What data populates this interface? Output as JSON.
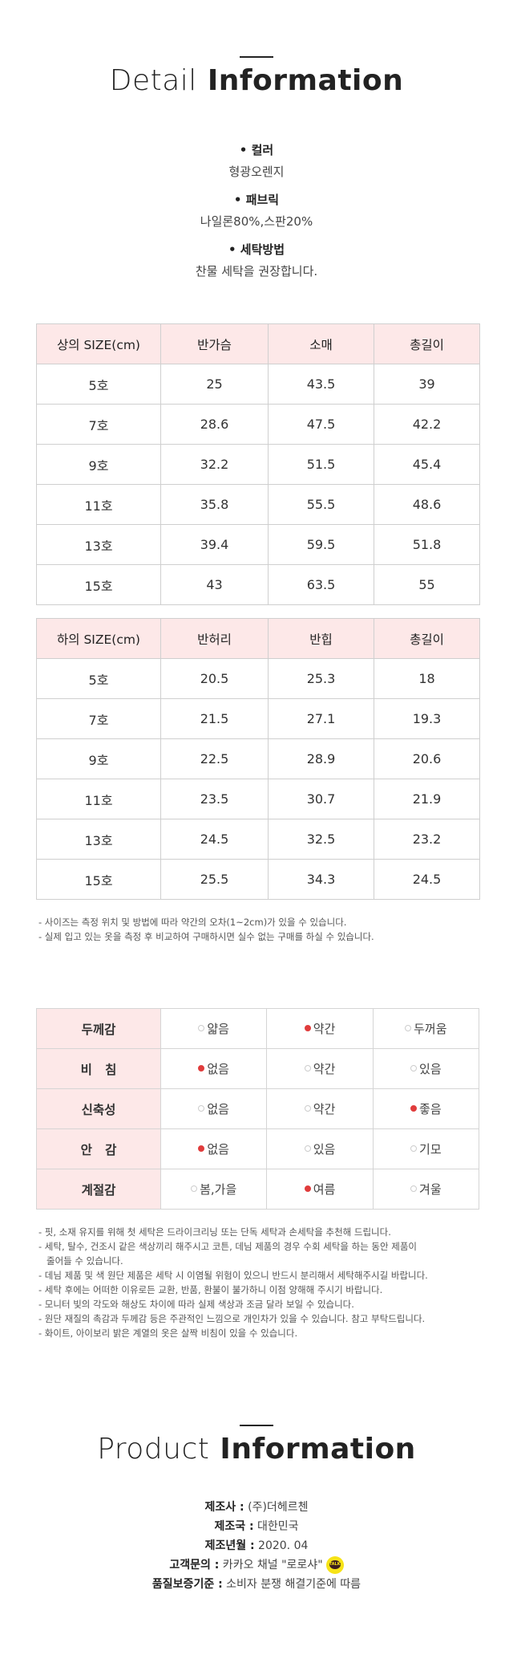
{
  "detail": {
    "title_light": "Detail",
    "title_bold": "Information",
    "attributes": [
      {
        "label": "• 컬러",
        "value": "형광오렌지"
      },
      {
        "label": "• 패브릭",
        "value": "나일론80%,스판20%"
      },
      {
        "label": "• 세탁방법",
        "value": "찬물 세탁을 권장합니다."
      }
    ]
  },
  "top_size": {
    "headers": [
      "상의 SIZE(cm)",
      "반가슴",
      "소매",
      "총길이"
    ],
    "rows": [
      [
        "5호",
        "25",
        "43.5",
        "39"
      ],
      [
        "7호",
        "28.6",
        "47.5",
        "42.2"
      ],
      [
        "9호",
        "32.2",
        "51.5",
        "45.4"
      ],
      [
        "11호",
        "35.8",
        "55.5",
        "48.6"
      ],
      [
        "13호",
        "39.4",
        "59.5",
        "51.8"
      ],
      [
        "15호",
        "43",
        "63.5",
        "55"
      ]
    ]
  },
  "bottom_size": {
    "headers": [
      "하의 SIZE(cm)",
      "반허리",
      "반힙",
      "총길이"
    ],
    "rows": [
      [
        "5호",
        "20.5",
        "25.3",
        "18"
      ],
      [
        "7호",
        "21.5",
        "27.1",
        "19.3"
      ],
      [
        "9호",
        "22.5",
        "28.9",
        "20.6"
      ],
      [
        "11호",
        "23.5",
        "30.7",
        "21.9"
      ],
      [
        "13호",
        "24.5",
        "32.5",
        "23.2"
      ],
      [
        "15호",
        "25.5",
        "34.3",
        "24.5"
      ]
    ]
  },
  "size_notes": [
    "- 사이즈는 측정 위치 및 방법에 따라 약간의 오차(1~2cm)가 있을 수 있습니다.",
    "- 실제 입고 있는 옷을 측정 후 비교하여 구매하시면 실수 없는 구매를 하실 수 있습니다."
  ],
  "feel": [
    {
      "label": "두께감",
      "options": [
        "얇음",
        "약간",
        "두꺼움"
      ],
      "selected": 1
    },
    {
      "label": "비   침",
      "options": [
        "없음",
        "약간",
        "있음"
      ],
      "selected": 0
    },
    {
      "label": "신축성",
      "options": [
        "없음",
        "약간",
        "좋음"
      ],
      "selected": 2
    },
    {
      "label": "안   감",
      "options": [
        "없음",
        "있음",
        "기모"
      ],
      "selected": 0
    },
    {
      "label": "계절감",
      "options": [
        "봄,가을",
        "여름",
        "겨울"
      ],
      "selected": 1
    }
  ],
  "care_notes": [
    {
      "text": "- 핏, 소재 유지를 위해 첫 세탁은 드라이크리닝 또는 단독 세탁과 손세탁을 추천해 드립니다.",
      "indent": false
    },
    {
      "text": "- 세탁, 탈수, 건조시 같은 색상끼리 해주시고 코튼, 데님 제품의 경우 수회 세탁을 하는 동안 제품이",
      "indent": false
    },
    {
      "text": "줄어들 수 있습니다.",
      "indent": true
    },
    {
      "text": "- 데님 제품 및 색 원단 제품은 세탁 시 이염될 위험이 있으니 반드시 분리해서 세탁해주시길 바랍니다.",
      "indent": false
    },
    {
      "text": "- 세탁 후에는 어떠한 이유로든 교환, 반품, 환불이 불가하니 이점 양해해 주시기 바랍니다.",
      "indent": false
    },
    {
      "text": "- 모니터 빛의 각도와 해상도 차이에 따라 실제 색상과 조금 달라 보일 수 있습니다.",
      "indent": false
    },
    {
      "text": "- 원단 재질의 촉감과 두께감 등은 주관적인 느낌으로 개인차가 있을 수 있습니다. 참고 부탁드립니다.",
      "indent": false
    },
    {
      "text": "- 화이트, 아이보리 밝은 계열의 옷은 살짝 비침이 있을 수 있습니다.",
      "indent": false
    }
  ],
  "product": {
    "title_light": "Product",
    "title_bold": "Information",
    "rows": [
      {
        "key": "제조사 :",
        "value": " (주)더헤르첸"
      },
      {
        "key": "제조국 :",
        "value": " 대한민국"
      },
      {
        "key": "제조년월 :",
        "value": " 2020. 04"
      },
      {
        "key": "고객문의 :",
        "value": " 카카오 채널 \"로로샤\""
      },
      {
        "key": "품질보증기준 :",
        "value": " 소비자 분쟁 해결기준에 따름"
      }
    ],
    "kakao_badge": "TALK"
  }
}
